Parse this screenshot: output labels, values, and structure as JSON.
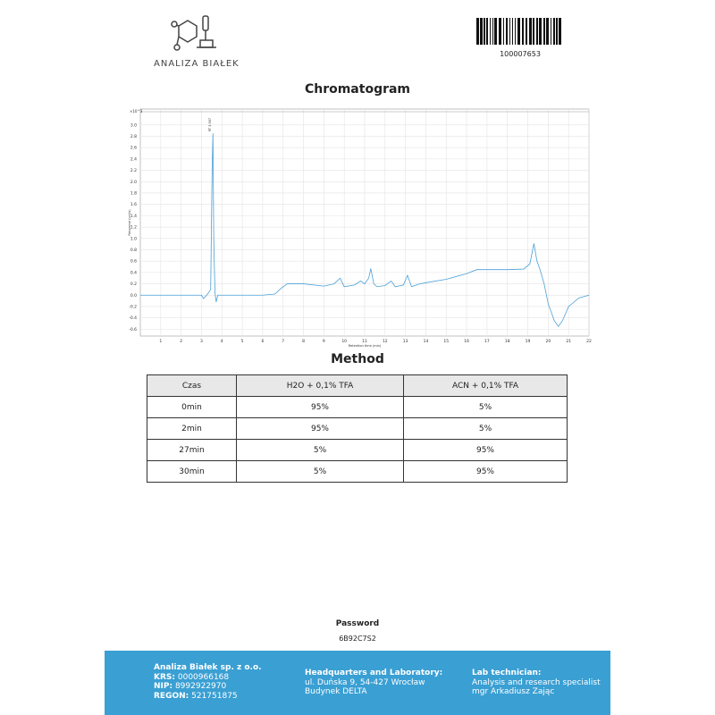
{
  "header": {
    "logo_text": "ANALIZA BIAŁEK",
    "barcode_number": "100007653"
  },
  "chromatogram_title": "Chromatogram",
  "chart_data": {
    "type": "line",
    "y_multiplier": "×10^3",
    "ylabel": "Response (units)",
    "xlabel": "Retention time (min)",
    "annotation": "RT 3.567",
    "xlim": [
      0,
      22
    ],
    "ylim": [
      -0.72,
      3.28
    ],
    "xticks": [
      1,
      2,
      3,
      4,
      5,
      6,
      7,
      8,
      9,
      10,
      11,
      12,
      13,
      14,
      15,
      16,
      17,
      18,
      19,
      20,
      21,
      22
    ],
    "yticks": [
      {
        "value": 3,
        "label": "3.0"
      },
      2.8,
      2.6,
      2.4,
      2.2,
      {
        "value": 2,
        "label": "2.0"
      },
      1.8,
      1.6,
      1.4,
      1.2,
      {
        "value": 1,
        "label": "1.0"
      },
      0.8,
      0.6,
      0.4,
      0.2,
      {
        "value": 0,
        "label": "0.0"
      },
      -0.2,
      -0.4,
      -0.6
    ],
    "grid": true,
    "series": [
      {
        "name": "Signal",
        "color": "#4a9fd8",
        "x": [
          0,
          1,
          2,
          3,
          3.1,
          3.3,
          3.45,
          3.52,
          3.56,
          3.6,
          3.66,
          3.72,
          3.8,
          4,
          5,
          6,
          6.6,
          6.9,
          7.2,
          8,
          9,
          9.5,
          9.8,
          10,
          10.5,
          10.8,
          11,
          11.2,
          11.3,
          11.45,
          11.6,
          12,
          12.3,
          12.5,
          12.9,
          13.1,
          13.3,
          13.7,
          14,
          15,
          16,
          16.5,
          17,
          18,
          18.8,
          19.1,
          19.3,
          19.45,
          19.6,
          19.8,
          20,
          20.3,
          20.5,
          20.7,
          21,
          21.5,
          22
        ],
        "values": [
          0,
          0,
          0,
          0,
          -0.06,
          0.02,
          0.1,
          2.2,
          2.85,
          1.0,
          0.05,
          -0.12,
          0,
          0,
          0,
          0,
          0.02,
          0.12,
          0.2,
          0.2,
          0.16,
          0.2,
          0.3,
          0.15,
          0.18,
          0.25,
          0.2,
          0.3,
          0.47,
          0.2,
          0.15,
          0.17,
          0.25,
          0.15,
          0.18,
          0.35,
          0.15,
          0.2,
          0.22,
          0.28,
          0.38,
          0.45,
          0.45,
          0.45,
          0.46,
          0.55,
          0.91,
          0.6,
          0.45,
          0.2,
          -0.15,
          -0.45,
          -0.55,
          -0.45,
          -0.2,
          -0.05,
          0
        ]
      }
    ]
  },
  "method": {
    "title": "Method",
    "table": {
      "header": [
        "Czas",
        "H2O + 0,1% TFA",
        "ACN + 0,1% TFA"
      ],
      "rows": [
        [
          "0min",
          "95%",
          "5%"
        ],
        [
          "2min",
          "95%",
          "5%"
        ],
        [
          "27min",
          "5%",
          "95%"
        ],
        [
          "30min",
          "5%",
          "95%"
        ]
      ]
    }
  },
  "password": {
    "label": "Password",
    "value": "6B92C7S2"
  },
  "footer": {
    "company": {
      "name": "Analiza Białek sp. z o.o.",
      "krs_label": "KRS:",
      "krs": "0000966168",
      "nip_label": "NIP:",
      "nip": "8992922970",
      "regon_label": "REGON:",
      "regon": "521751875"
    },
    "hq": {
      "title": "Headquarters and Laboratory:",
      "line1": "ul. Duńska 9, 54-427 Wrocław",
      "line2": "Budynek DELTA"
    },
    "lab": {
      "title": "Lab technician:",
      "line1": "Analysis and research specialist",
      "line2": "mgr Arkadiusz Zając"
    }
  }
}
